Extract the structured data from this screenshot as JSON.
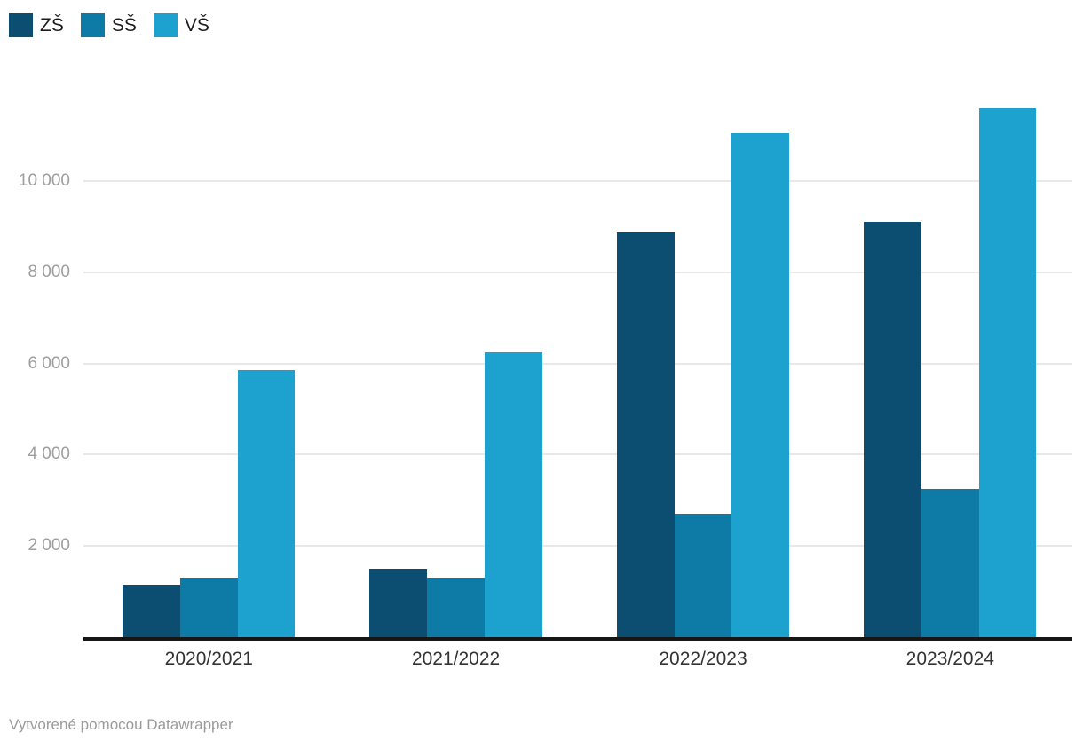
{
  "footer": {
    "text": "Vytvorené pomocou Datawrapper"
  },
  "chart_data": {
    "type": "bar",
    "categories": [
      "2020/2021",
      "2021/2022",
      "2022/2023",
      "2023/2024"
    ],
    "series": [
      {
        "name": "ZŠ",
        "color": "#0c4d72",
        "values": [
          1150,
          1500,
          8900,
          9100
        ]
      },
      {
        "name": "SŠ",
        "color": "#0e7ba6",
        "values": [
          1300,
          1300,
          2700,
          3250
        ]
      },
      {
        "name": "VŠ",
        "color": "#1da2cf",
        "values": [
          5850,
          6250,
          11050,
          11600
        ]
      }
    ],
    "yticks": [
      {
        "value": 2000,
        "label": "2 000"
      },
      {
        "value": 4000,
        "label": "4 000"
      },
      {
        "value": 6000,
        "label": "6 000"
      },
      {
        "value": 8000,
        "label": "8 000"
      },
      {
        "value": 10000,
        "label": "10 000"
      }
    ],
    "ylim": [
      0,
      11800
    ],
    "grid": "horizontal",
    "legend_position": "top-left",
    "colors": {
      "gridline": "#e8e8e8",
      "axis": "#161616",
      "ytick_text": "#9e9e9e",
      "xtick_text": "#333333",
      "legend_text": "#1d1d1d",
      "footer_text": "#9b9b9b"
    }
  }
}
